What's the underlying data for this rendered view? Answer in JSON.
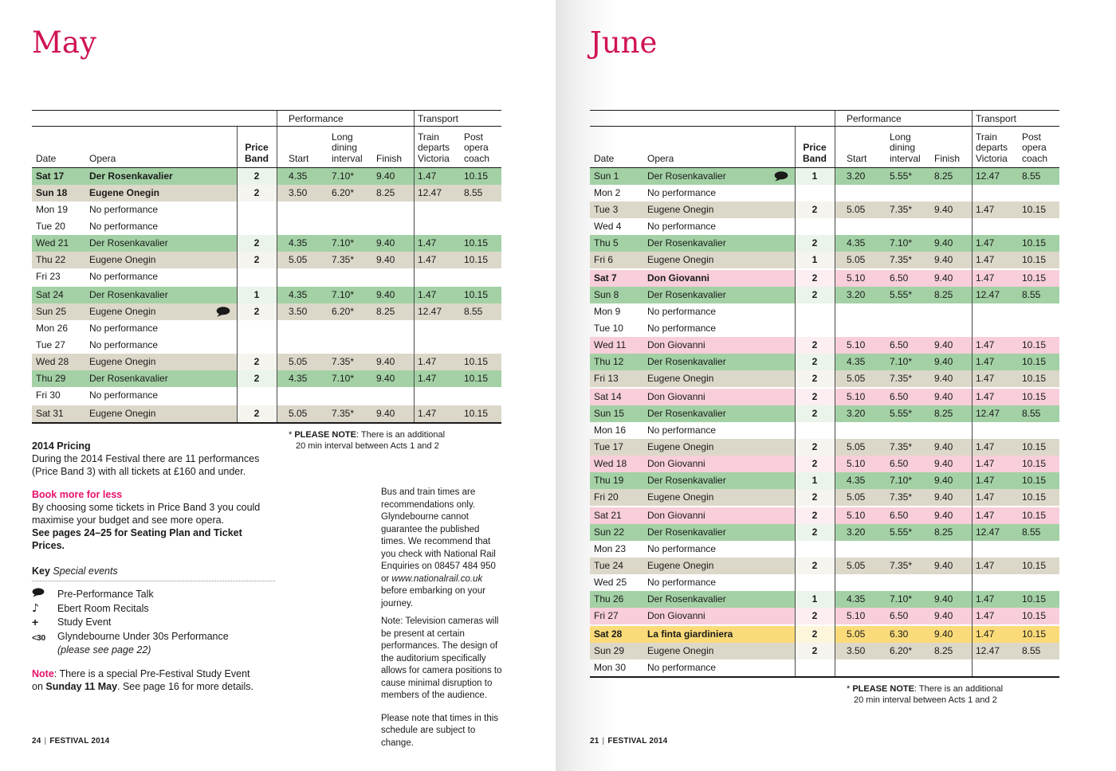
{
  "colors": {
    "title": "#d01356",
    "accent_pink": "#e8116b",
    "row_colors": {
      "green": {
        "bg": "#a3d1a5",
        "tint": "#eaf4ea"
      },
      "tan": {
        "bg": "#dcd8c9",
        "tint": "#f5f4ef"
      },
      "pink": {
        "bg": "#f7ced9",
        "tint": "#fdeef2"
      },
      "yellow": {
        "bg": "#fbdb79",
        "tint": "#fef6da"
      },
      "none": {
        "bg": "transparent",
        "tint": "transparent"
      }
    }
  },
  "table_headers": {
    "performance": "Performance",
    "transport": "Transport",
    "date": "Date",
    "opera": "Opera",
    "price_band_lines": [
      "Price",
      "Band"
    ],
    "start": "Start",
    "interval_lines": [
      "Long",
      "dining",
      "interval"
    ],
    "finish": "Finish",
    "train_lines": [
      "Train",
      "departs",
      "Victoria"
    ],
    "coach_lines": [
      "Post",
      "opera",
      "coach"
    ]
  },
  "footnote": {
    "prefix": "* ",
    "bold": "PLEASE NOTE",
    "rest": ": There is an additional",
    "line2": "20 min interval between Acts 1 and 2"
  },
  "months": [
    {
      "id": "may",
      "title": "May",
      "footer_page": "24",
      "footer_label": "FESTIVAL 2014",
      "rows": [
        {
          "date": "Sat 17",
          "opera": "Der Rosenkavalier",
          "band": "2",
          "start": "4.35",
          "interval": "7.10*",
          "finish": "9.40",
          "train": "1.47",
          "coach": "10.15",
          "color": "green",
          "bold": true,
          "talk": false,
          "gap": false
        },
        {
          "date": "Sun 18",
          "opera": "Eugene Onegin",
          "band": "2",
          "start": "3.50",
          "interval": "6.20*",
          "finish": "8.25",
          "train": "12.47",
          "coach": "8.55",
          "color": "tan",
          "bold": true,
          "talk": false,
          "gap": false
        },
        {
          "date": "Mon 19",
          "opera": "No performance",
          "band": "",
          "start": "",
          "interval": "",
          "finish": "",
          "train": "",
          "coach": "",
          "color": "none",
          "bold": false,
          "talk": false,
          "gap": false
        },
        {
          "date": "Tue 20",
          "opera": "No performance",
          "band": "",
          "start": "",
          "interval": "",
          "finish": "",
          "train": "",
          "coach": "",
          "color": "none",
          "bold": false,
          "talk": false,
          "gap": false
        },
        {
          "date": "Wed 21",
          "opera": "Der Rosenkavalier",
          "band": "2",
          "start": "4.35",
          "interval": "7.10*",
          "finish": "9.40",
          "train": "1.47",
          "coach": "10.15",
          "color": "green",
          "bold": false,
          "talk": false,
          "gap": false
        },
        {
          "date": "Thu 22",
          "opera": "Eugene Onegin",
          "band": "2",
          "start": "5.05",
          "interval": "7.35*",
          "finish": "9.40",
          "train": "1.47",
          "coach": "10.15",
          "color": "tan",
          "bold": false,
          "talk": false,
          "gap": false
        },
        {
          "date": "Fri 23",
          "opera": "No performance",
          "band": "",
          "start": "",
          "interval": "",
          "finish": "",
          "train": "",
          "coach": "",
          "color": "none",
          "bold": false,
          "talk": false,
          "gap": false
        },
        {
          "date": "Sat 24",
          "opera": "Der Rosenkavalier",
          "band": "1",
          "start": "4.35",
          "interval": "7.10*",
          "finish": "9.40",
          "train": "1.47",
          "coach": "10.15",
          "color": "green",
          "bold": false,
          "talk": false,
          "gap": true
        },
        {
          "date": "Sun 25",
          "opera": "Eugene Onegin",
          "band": "2",
          "start": "3.50",
          "interval": "6.20*",
          "finish": "8.25",
          "train": "12.47",
          "coach": "8.55",
          "color": "tan",
          "bold": false,
          "talk": true,
          "gap": false
        },
        {
          "date": "Mon 26",
          "opera": "No performance",
          "band": "",
          "start": "",
          "interval": "",
          "finish": "",
          "train": "",
          "coach": "",
          "color": "none",
          "bold": false,
          "talk": false,
          "gap": false
        },
        {
          "date": "Tue 27",
          "opera": "No performance",
          "band": "",
          "start": "",
          "interval": "",
          "finish": "",
          "train": "",
          "coach": "",
          "color": "none",
          "bold": false,
          "talk": false,
          "gap": false
        },
        {
          "date": "Wed 28",
          "opera": "Eugene Onegin",
          "band": "2",
          "start": "5.05",
          "interval": "7.35*",
          "finish": "9.40",
          "train": "1.47",
          "coach": "10.15",
          "color": "tan",
          "bold": false,
          "talk": false,
          "gap": false
        },
        {
          "date": "Thu 29",
          "opera": "Der Rosenkavalier",
          "band": "2",
          "start": "4.35",
          "interval": "7.10*",
          "finish": "9.40",
          "train": "1.47",
          "coach": "10.15",
          "color": "green",
          "bold": false,
          "talk": false,
          "gap": false
        },
        {
          "date": "Fri 30",
          "opera": "No performance",
          "band": "",
          "start": "",
          "interval": "",
          "finish": "",
          "train": "",
          "coach": "",
          "color": "none",
          "bold": false,
          "talk": false,
          "gap": false
        },
        {
          "date": "Sat 31",
          "opera": "Eugene Onegin",
          "band": "2",
          "start": "5.05",
          "interval": "7.35*",
          "finish": "9.40",
          "train": "1.47",
          "coach": "10.15",
          "color": "tan",
          "bold": false,
          "talk": false,
          "gap": true
        }
      ]
    },
    {
      "id": "june",
      "title": "June",
      "footer_page": "21",
      "footer_label": "FESTIVAL 2014",
      "rows": [
        {
          "date": "Sun 1",
          "opera": "Der Rosenkavalier",
          "band": "1",
          "start": "3.20",
          "interval": "5.55*",
          "finish": "8.25",
          "train": "12.47",
          "coach": "8.55",
          "color": "green",
          "bold": false,
          "talk": true,
          "gap": false
        },
        {
          "date": "Mon 2",
          "opera": "No performance",
          "band": "",
          "start": "",
          "interval": "",
          "finish": "",
          "train": "",
          "coach": "",
          "color": "none",
          "bold": false,
          "talk": false,
          "gap": false
        },
        {
          "date": "Tue 3",
          "opera": "Eugene Onegin",
          "band": "2",
          "start": "5.05",
          "interval": "7.35*",
          "finish": "9.40",
          "train": "1.47",
          "coach": "10.15",
          "color": "tan",
          "bold": false,
          "talk": false,
          "gap": false
        },
        {
          "date": "Wed 4",
          "opera": "No performance",
          "band": "",
          "start": "",
          "interval": "",
          "finish": "",
          "train": "",
          "coach": "",
          "color": "none",
          "bold": false,
          "talk": false,
          "gap": false
        },
        {
          "date": "Thu 5",
          "opera": "Der Rosenkavalier",
          "band": "2",
          "start": "4.35",
          "interval": "7.10*",
          "finish": "9.40",
          "train": "1.47",
          "coach": "10.15",
          "color": "green",
          "bold": false,
          "talk": false,
          "gap": false
        },
        {
          "date": "Fri 6",
          "opera": "Eugene Onegin",
          "band": "1",
          "start": "5.05",
          "interval": "7.35*",
          "finish": "9.40",
          "train": "1.47",
          "coach": "10.15",
          "color": "tan",
          "bold": false,
          "talk": false,
          "gap": false
        },
        {
          "date": "Sat 7",
          "opera": "Don Giovanni",
          "band": "2",
          "start": "5.10",
          "interval": "6.50",
          "finish": "9.40",
          "train": "1.47",
          "coach": "10.15",
          "color": "pink",
          "bold": true,
          "talk": false,
          "gap": true
        },
        {
          "date": "Sun 8",
          "opera": "Der Rosenkavalier",
          "band": "2",
          "start": "3.20",
          "interval": "5.55*",
          "finish": "8.25",
          "train": "12.47",
          "coach": "8.55",
          "color": "green",
          "bold": false,
          "talk": false,
          "gap": false
        },
        {
          "date": "Mon 9",
          "opera": "No performance",
          "band": "",
          "start": "",
          "interval": "",
          "finish": "",
          "train": "",
          "coach": "",
          "color": "none",
          "bold": false,
          "talk": false,
          "gap": false
        },
        {
          "date": "Tue 10",
          "opera": "No performance",
          "band": "",
          "start": "",
          "interval": "",
          "finish": "",
          "train": "",
          "coach": "",
          "color": "none",
          "bold": false,
          "talk": false,
          "gap": false
        },
        {
          "date": "Wed 11",
          "opera": "Don Giovanni",
          "band": "2",
          "start": "5.10",
          "interval": "6.50",
          "finish": "9.40",
          "train": "1.47",
          "coach": "10.15",
          "color": "pink",
          "bold": false,
          "talk": false,
          "gap": false
        },
        {
          "date": "Thu 12",
          "opera": "Der Rosenkavalier",
          "band": "2",
          "start": "4.35",
          "interval": "7.10*",
          "finish": "9.40",
          "train": "1.47",
          "coach": "10.15",
          "color": "green",
          "bold": false,
          "talk": false,
          "gap": false
        },
        {
          "date": "Fri 13",
          "opera": "Eugene Onegin",
          "band": "2",
          "start": "5.05",
          "interval": "7.35*",
          "finish": "9.40",
          "train": "1.47",
          "coach": "10.15",
          "color": "tan",
          "bold": false,
          "talk": false,
          "gap": false
        },
        {
          "date": "Sat 14",
          "opera": "Don Giovanni",
          "band": "2",
          "start": "5.10",
          "interval": "6.50",
          "finish": "9.40",
          "train": "1.47",
          "coach": "10.15",
          "color": "pink",
          "bold": false,
          "talk": false,
          "gap": true
        },
        {
          "date": "Sun 15",
          "opera": "Der Rosenkavalier",
          "band": "2",
          "start": "3.20",
          "interval": "5.55*",
          "finish": "8.25",
          "train": "12.47",
          "coach": "8.55",
          "color": "green",
          "bold": false,
          "talk": false,
          "gap": false
        },
        {
          "date": "Mon 16",
          "opera": "No performance",
          "band": "",
          "start": "",
          "interval": "",
          "finish": "",
          "train": "",
          "coach": "",
          "color": "none",
          "bold": false,
          "talk": false,
          "gap": false
        },
        {
          "date": "Tue 17",
          "opera": "Eugene Onegin",
          "band": "2",
          "start": "5.05",
          "interval": "7.35*",
          "finish": "9.40",
          "train": "1.47",
          "coach": "10.15",
          "color": "tan",
          "bold": false,
          "talk": false,
          "gap": false
        },
        {
          "date": "Wed 18",
          "opera": "Don Giovanni",
          "band": "2",
          "start": "5.10",
          "interval": "6.50",
          "finish": "9.40",
          "train": "1.47",
          "coach": "10.15",
          "color": "pink",
          "bold": false,
          "talk": false,
          "gap": false
        },
        {
          "date": "Thu 19",
          "opera": "Der Rosenkavalier",
          "band": "1",
          "start": "4.35",
          "interval": "7.10*",
          "finish": "9.40",
          "train": "1.47",
          "coach": "10.15",
          "color": "green",
          "bold": false,
          "talk": false,
          "gap": false
        },
        {
          "date": "Fri 20",
          "opera": "Eugene Onegin",
          "band": "2",
          "start": "5.05",
          "interval": "7.35*",
          "finish": "9.40",
          "train": "1.47",
          "coach": "10.15",
          "color": "tan",
          "bold": false,
          "talk": false,
          "gap": false
        },
        {
          "date": "Sat 21",
          "opera": "Don Giovanni",
          "band": "2",
          "start": "5.10",
          "interval": "6.50",
          "finish": "9.40",
          "train": "1.47",
          "coach": "10.15",
          "color": "pink",
          "bold": false,
          "talk": false,
          "gap": true
        },
        {
          "date": "Sun 22",
          "opera": "Der Rosenkavalier",
          "band": "2",
          "start": "3.20",
          "interval": "5.55*",
          "finish": "8.25",
          "train": "12.47",
          "coach": "8.55",
          "color": "green",
          "bold": false,
          "talk": false,
          "gap": false
        },
        {
          "date": "Mon 23",
          "opera": "No performance",
          "band": "",
          "start": "",
          "interval": "",
          "finish": "",
          "train": "",
          "coach": "",
          "color": "none",
          "bold": false,
          "talk": false,
          "gap": false
        },
        {
          "date": "Tue 24",
          "opera": "Eugene Onegin",
          "band": "2",
          "start": "5.05",
          "interval": "7.35*",
          "finish": "9.40",
          "train": "1.47",
          "coach": "10.15",
          "color": "tan",
          "bold": false,
          "talk": false,
          "gap": false
        },
        {
          "date": "Wed 25",
          "opera": "No performance",
          "band": "",
          "start": "",
          "interval": "",
          "finish": "",
          "train": "",
          "coach": "",
          "color": "none",
          "bold": false,
          "talk": false,
          "gap": false
        },
        {
          "date": "Thu 26",
          "opera": "Der Rosenkavalier",
          "band": "1",
          "start": "4.35",
          "interval": "7.10*",
          "finish": "9.40",
          "train": "1.47",
          "coach": "10.15",
          "color": "green",
          "bold": false,
          "talk": false,
          "gap": false
        },
        {
          "date": "Fri 27",
          "opera": "Don Giovanni",
          "band": "2",
          "start": "5.10",
          "interval": "6.50",
          "finish": "9.40",
          "train": "1.47",
          "coach": "10.15",
          "color": "pink",
          "bold": false,
          "talk": false,
          "gap": false
        },
        {
          "date": "Sat 28",
          "opera": "La finta giardiniera",
          "band": "2",
          "start": "5.05",
          "interval": "6.30",
          "finish": "9.40",
          "train": "1.47",
          "coach": "10.15",
          "color": "yellow",
          "bold": true,
          "talk": false,
          "gap": true
        },
        {
          "date": "Sun 29",
          "opera": "Eugene Onegin",
          "band": "2",
          "start": "3.50",
          "interval": "6.20*",
          "finish": "8.25",
          "train": "12.47",
          "coach": "8.55",
          "color": "tan",
          "bold": false,
          "talk": false,
          "gap": false
        },
        {
          "date": "Mon 30",
          "opera": "No performance",
          "band": "",
          "start": "",
          "interval": "",
          "finish": "",
          "train": "",
          "coach": "",
          "color": "none",
          "bold": false,
          "talk": false,
          "gap": false
        }
      ]
    }
  ],
  "left_column": {
    "pricing": {
      "heading": "2014 Pricing",
      "lines": [
        "During the 2014 Festival there are 11 performances",
        "(Price Band 3) with all tickets at £160 and under."
      ]
    },
    "book": {
      "heading": "Book more for less",
      "lines": [
        "By choosing  some tickets in Price Band 3 you could",
        "maximise your budget and see more opera."
      ],
      "bold_line": "See pages 24–25 for Seating Plan and Ticket Prices."
    },
    "key": {
      "heading_bold": "Key",
      "heading_italic": "Special events",
      "items": [
        {
          "icon": "speech-bubble",
          "label": "Pre-Performance Talk"
        },
        {
          "icon": "music-note",
          "icon_text": "♪",
          "label": "Ebert Room Recitals"
        },
        {
          "icon": "plus",
          "icon_text": "+",
          "label": "Study Event"
        },
        {
          "icon": "under-30",
          "icon_text": "<30",
          "label": "Glyndebourne Under 30s Performance",
          "sub": "(please see page 22)"
        }
      ]
    },
    "study_note": {
      "label": "Note",
      "line1_rest": ": There is a special Pre-Festival Study Event",
      "line2_pre": "on ",
      "line2_bold": "Sunday 11 May",
      "line2_post": ". See page 16 for more details."
    }
  },
  "middle_column": {
    "para1_pre": "Bus and train times are recommendations only. Glyndebourne cannot guarantee the published times. We recommend that you check with National Rail Enquiries on 08457 484 950 or ",
    "para1_italic": "www.nationalrail.co.uk",
    "para1_post": " before embarking on your journey.",
    "para2": "Note: Television cameras will be present at certain performances. The design of the auditorium specifically allows for camera positions to cause minimal disruption to members of the audience.",
    "para3": "Please note that times in this schedule are subject to change."
  }
}
